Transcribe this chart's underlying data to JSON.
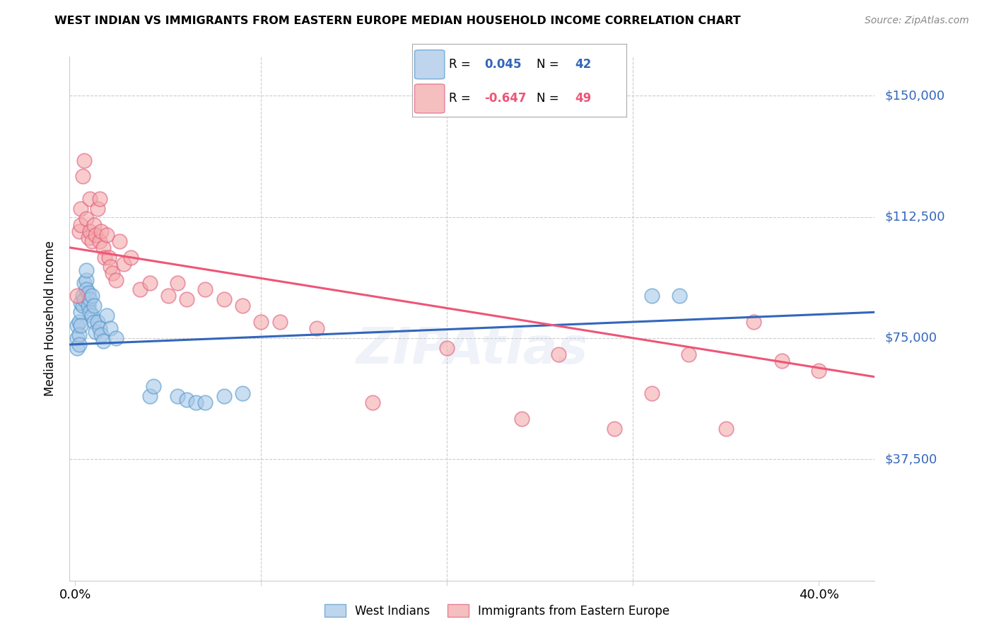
{
  "title": "WEST INDIAN VS IMMIGRANTS FROM EASTERN EUROPE MEDIAN HOUSEHOLD INCOME CORRELATION CHART",
  "source": "Source: ZipAtlas.com",
  "ylabel": "Median Household Income",
  "ytick_labels": [
    "$150,000",
    "$112,500",
    "$75,000",
    "$37,500"
  ],
  "ytick_values": [
    150000,
    112500,
    75000,
    37500
  ],
  "ymin": 0,
  "ymax": 162000,
  "xmin": -0.003,
  "xmax": 0.43,
  "blue_color": "#a8c8e8",
  "pink_color": "#f4aaaa",
  "blue_edge_color": "#5599cc",
  "pink_edge_color": "#e06080",
  "blue_line_color": "#3366bb",
  "pink_line_color": "#ee5577",
  "blue_scatter_x": [
    0.001,
    0.001,
    0.001,
    0.002,
    0.002,
    0.002,
    0.003,
    0.003,
    0.003,
    0.004,
    0.004,
    0.005,
    0.005,
    0.006,
    0.006,
    0.006,
    0.007,
    0.007,
    0.008,
    0.008,
    0.009,
    0.009,
    0.01,
    0.01,
    0.011,
    0.012,
    0.013,
    0.014,
    0.015,
    0.017,
    0.019,
    0.022,
    0.04,
    0.042,
    0.055,
    0.06,
    0.065,
    0.07,
    0.08,
    0.09,
    0.31,
    0.325
  ],
  "blue_scatter_y": [
    75000,
    79000,
    72000,
    80000,
    76000,
    73000,
    83000,
    86000,
    79000,
    85000,
    88000,
    92000,
    87000,
    93000,
    96000,
    90000,
    89000,
    85000,
    87000,
    83000,
    88000,
    82000,
    80000,
    85000,
    77000,
    80000,
    78000,
    76000,
    74000,
    82000,
    78000,
    75000,
    57000,
    60000,
    57000,
    56000,
    55000,
    55000,
    57000,
    58000,
    88000,
    88000
  ],
  "pink_scatter_x": [
    0.001,
    0.002,
    0.003,
    0.003,
    0.004,
    0.005,
    0.006,
    0.007,
    0.008,
    0.008,
    0.009,
    0.01,
    0.011,
    0.012,
    0.013,
    0.013,
    0.014,
    0.015,
    0.016,
    0.017,
    0.018,
    0.019,
    0.02,
    0.022,
    0.024,
    0.026,
    0.03,
    0.035,
    0.04,
    0.05,
    0.055,
    0.06,
    0.07,
    0.08,
    0.09,
    0.1,
    0.11,
    0.13,
    0.16,
    0.2,
    0.24,
    0.26,
    0.29,
    0.31,
    0.33,
    0.35,
    0.365,
    0.38,
    0.4
  ],
  "pink_scatter_y": [
    88000,
    108000,
    115000,
    110000,
    125000,
    130000,
    112000,
    106000,
    118000,
    108000,
    105000,
    110000,
    107000,
    115000,
    105000,
    118000,
    108000,
    103000,
    100000,
    107000,
    100000,
    97000,
    95000,
    93000,
    105000,
    98000,
    100000,
    90000,
    92000,
    88000,
    92000,
    87000,
    90000,
    87000,
    85000,
    80000,
    80000,
    78000,
    55000,
    72000,
    50000,
    70000,
    47000,
    58000,
    70000,
    47000,
    80000,
    68000,
    65000
  ],
  "blue_trend_x": [
    -0.003,
    0.43
  ],
  "blue_trend_y": [
    73000,
    83000
  ],
  "pink_trend_x": [
    -0.003,
    0.43
  ],
  "pink_trend_y": [
    103000,
    63000
  ],
  "watermark_text": "ZIPAtlas",
  "legend_entries": [
    {
      "color": "#a8c8e8",
      "edge": "#5599cc",
      "text_r": "R = ",
      "r_val": " 0.045",
      "text_n": "  N = ",
      "n_val": "42"
    },
    {
      "color": "#f4aaaa",
      "edge": "#e06080",
      "text_r": "R = ",
      "r_val": "-0.647",
      "text_n": "  N = ",
      "n_val": "49"
    }
  ],
  "bottom_legend": [
    "West Indians",
    "Immigrants from Eastern Europe"
  ]
}
